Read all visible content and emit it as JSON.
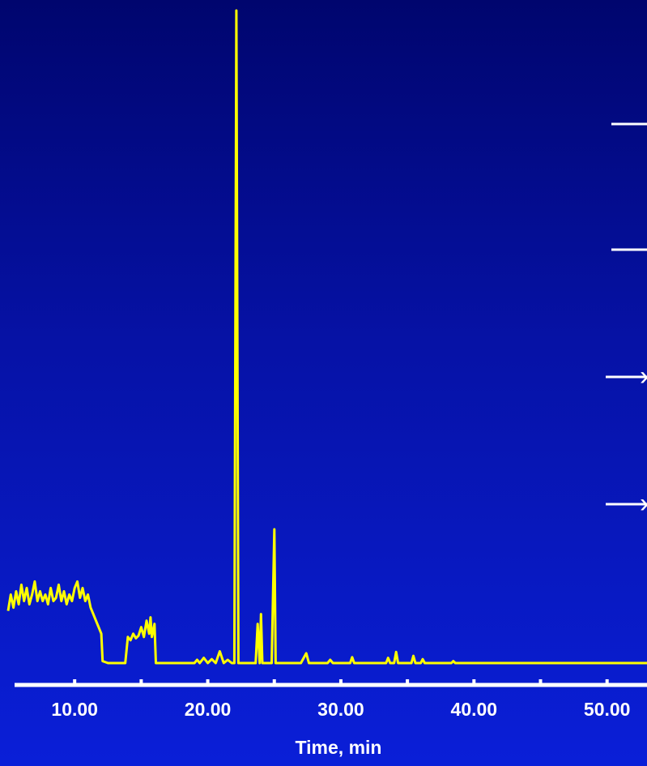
{
  "chart_data": {
    "type": "line",
    "xlabel": "Time, min",
    "ylabel": "",
    "xlim": [
      5.0,
      53.0
    ],
    "ylim": [
      0,
      100
    ],
    "grid": false,
    "x_ticks": [
      10.0,
      15.0,
      20.0,
      25.0,
      30.0,
      35.0,
      40.0,
      45.0,
      50.0
    ],
    "x_tick_labels": [
      "10.00",
      "20.00",
      "30.00",
      "40.00",
      "50.00"
    ],
    "x_tick_label_values": [
      10.0,
      20.0,
      30.0,
      40.0,
      50.0
    ],
    "series": [
      {
        "color": "#ffff00",
        "points": [
          [
            5.0,
            8.0
          ],
          [
            5.2,
            10.5
          ],
          [
            5.4,
            8.5
          ],
          [
            5.6,
            11.0
          ],
          [
            5.8,
            9.0
          ],
          [
            6.0,
            12.0
          ],
          [
            6.2,
            9.5
          ],
          [
            6.4,
            11.5
          ],
          [
            6.6,
            9.0
          ],
          [
            6.8,
            10.5
          ],
          [
            7.0,
            12.5
          ],
          [
            7.2,
            9.5
          ],
          [
            7.4,
            11.0
          ],
          [
            7.6,
            9.5
          ],
          [
            7.8,
            10.5
          ],
          [
            8.0,
            9.0
          ],
          [
            8.2,
            11.5
          ],
          [
            8.4,
            9.5
          ],
          [
            8.6,
            10.0
          ],
          [
            8.8,
            12.0
          ],
          [
            9.0,
            9.5
          ],
          [
            9.2,
            11.0
          ],
          [
            9.4,
            9.0
          ],
          [
            9.6,
            10.5
          ],
          [
            9.8,
            9.5
          ],
          [
            10.0,
            11.5
          ],
          [
            10.2,
            12.5
          ],
          [
            10.4,
            10.0
          ],
          [
            10.6,
            11.5
          ],
          [
            10.8,
            9.5
          ],
          [
            11.0,
            10.5
          ],
          [
            11.2,
            8.5
          ],
          [
            11.4,
            7.5
          ],
          [
            11.6,
            6.5
          ],
          [
            11.8,
            5.5
          ],
          [
            12.0,
            4.5
          ],
          [
            12.1,
            0.3
          ],
          [
            12.5,
            0.0
          ],
          [
            13.0,
            0.0
          ],
          [
            13.5,
            0.0
          ],
          [
            13.8,
            0.0
          ],
          [
            14.0,
            4.0
          ],
          [
            14.2,
            3.5
          ],
          [
            14.4,
            4.5
          ],
          [
            14.6,
            3.8
          ],
          [
            14.8,
            4.2
          ],
          [
            15.0,
            5.5
          ],
          [
            15.2,
            4.0
          ],
          [
            15.4,
            6.5
          ],
          [
            15.6,
            4.5
          ],
          [
            15.7,
            7.0
          ],
          [
            15.8,
            4.0
          ],
          [
            16.0,
            6.0
          ],
          [
            16.1,
            0.0
          ],
          [
            17.0,
            0.0
          ],
          [
            18.0,
            0.0
          ],
          [
            19.0,
            0.0
          ],
          [
            19.2,
            0.5
          ],
          [
            19.4,
            0.0
          ],
          [
            19.7,
            0.8
          ],
          [
            20.0,
            0.0
          ],
          [
            20.3,
            0.6
          ],
          [
            20.6,
            0.0
          ],
          [
            20.9,
            1.8
          ],
          [
            21.2,
            0.0
          ],
          [
            21.5,
            0.5
          ],
          [
            21.8,
            0.0
          ],
          [
            22.0,
            0.0
          ],
          [
            22.15,
            100.0
          ],
          [
            22.3,
            0.0
          ],
          [
            23.0,
            0.0
          ],
          [
            23.6,
            0.0
          ],
          [
            23.75,
            6.0
          ],
          [
            23.9,
            0.0
          ],
          [
            24.0,
            7.5
          ],
          [
            24.1,
            0.0
          ],
          [
            24.8,
            0.0
          ],
          [
            25.0,
            20.5
          ],
          [
            25.1,
            0.0
          ],
          [
            26.0,
            0.0
          ],
          [
            27.0,
            0.0
          ],
          [
            27.4,
            1.5
          ],
          [
            27.6,
            0.0
          ],
          [
            29.0,
            0.0
          ],
          [
            29.2,
            0.5
          ],
          [
            29.4,
            0.0
          ],
          [
            30.7,
            0.0
          ],
          [
            30.85,
            0.9
          ],
          [
            31.0,
            0.0
          ],
          [
            33.4,
            0.0
          ],
          [
            33.55,
            0.8
          ],
          [
            33.7,
            0.0
          ],
          [
            34.0,
            0.0
          ],
          [
            34.15,
            1.7
          ],
          [
            34.3,
            0.0
          ],
          [
            35.3,
            0.0
          ],
          [
            35.45,
            1.1
          ],
          [
            35.6,
            0.0
          ],
          [
            36.0,
            0.0
          ],
          [
            36.15,
            0.6
          ],
          [
            36.3,
            0.0
          ],
          [
            38.3,
            0.0
          ],
          [
            38.45,
            0.3
          ],
          [
            38.6,
            0.0
          ],
          [
            45.0,
            0.0
          ],
          [
            53.0,
            0.0
          ]
        ]
      }
    ]
  },
  "markers": [
    {
      "name": "marker-1",
      "glyph": ""
    },
    {
      "name": "marker-2",
      "glyph": ""
    },
    {
      "name": "marker-3",
      "glyph": "›"
    },
    {
      "name": "marker-4",
      "glyph": "›"
    }
  ]
}
